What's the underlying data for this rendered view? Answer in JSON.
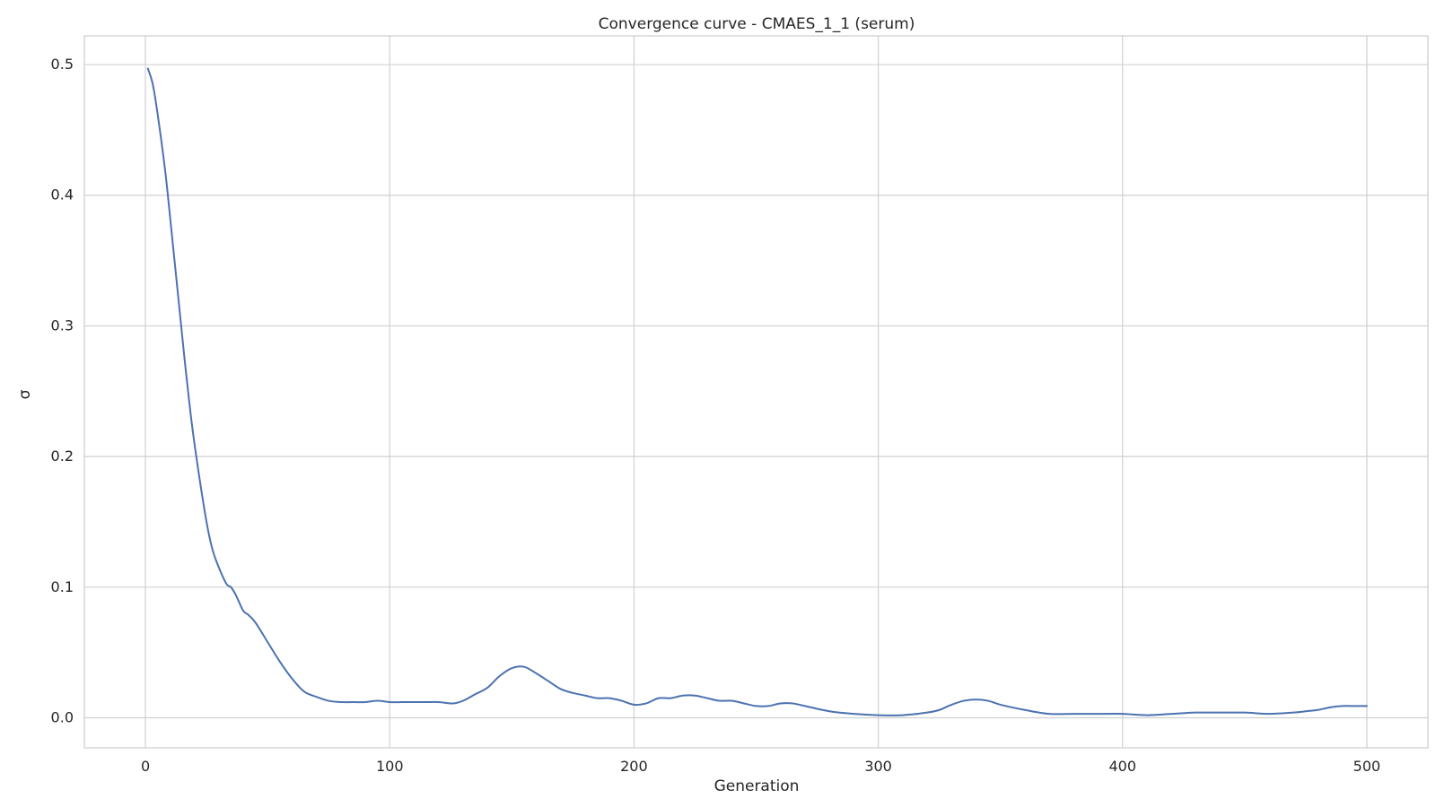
{
  "chart_data": {
    "type": "line",
    "title": "Convergence curve - CMAES_1_1 (serum)",
    "xlabel": "Generation",
    "ylabel": "σ",
    "xlim": [
      -25,
      525
    ],
    "ylim": [
      -0.023,
      0.522
    ],
    "xticks": [
      0,
      100,
      200,
      300,
      400,
      500
    ],
    "yticks": [
      0.0,
      0.1,
      0.2,
      0.3,
      0.4,
      0.5
    ],
    "xtick_labels": [
      "0",
      "100",
      "200",
      "300",
      "400",
      "500"
    ],
    "ytick_labels": [
      "0.0",
      "0.1",
      "0.2",
      "0.3",
      "0.4",
      "0.5"
    ],
    "grid": true,
    "colors": {
      "line": "#4c72b0",
      "grid": "#d0d0d0",
      "spine": "#cccccc"
    },
    "series": [
      {
        "x": [
          1,
          3,
          5,
          8,
          10,
          13,
          16,
          19,
          22,
          25,
          27,
          29,
          33,
          35,
          37,
          40,
          42,
          45,
          50,
          55,
          60,
          65,
          70,
          75,
          80,
          85,
          90,
          95,
          100,
          105,
          110,
          115,
          120,
          126,
          130,
          135,
          140,
          145,
          150,
          155,
          160,
          165,
          170,
          175,
          180,
          185,
          190,
          195,
          200,
          205,
          210,
          215,
          220,
          225,
          230,
          235,
          240,
          245,
          250,
          255,
          260,
          265,
          270,
          280,
          290,
          300,
          310,
          320,
          325,
          330,
          335,
          340,
          345,
          350,
          360,
          370,
          380,
          390,
          400,
          410,
          420,
          430,
          440,
          450,
          460,
          470,
          475,
          480,
          485,
          490,
          495,
          500
        ],
        "y": [
          0.497,
          0.485,
          0.462,
          0.42,
          0.385,
          0.33,
          0.275,
          0.225,
          0.185,
          0.15,
          0.132,
          0.12,
          0.103,
          0.1,
          0.094,
          0.082,
          0.079,
          0.073,
          0.058,
          0.043,
          0.03,
          0.02,
          0.016,
          0.013,
          0.012,
          0.012,
          0.012,
          0.013,
          0.012,
          0.012,
          0.012,
          0.012,
          0.012,
          0.011,
          0.013,
          0.018,
          0.023,
          0.032,
          0.038,
          0.039,
          0.034,
          0.028,
          0.022,
          0.019,
          0.017,
          0.015,
          0.015,
          0.013,
          0.01,
          0.011,
          0.015,
          0.015,
          0.017,
          0.017,
          0.015,
          0.013,
          0.013,
          0.011,
          0.009,
          0.009,
          0.011,
          0.011,
          0.009,
          0.005,
          0.003,
          0.002,
          0.002,
          0.004,
          0.006,
          0.01,
          0.013,
          0.014,
          0.013,
          0.01,
          0.006,
          0.003,
          0.003,
          0.003,
          0.003,
          0.002,
          0.003,
          0.004,
          0.004,
          0.004,
          0.003,
          0.004,
          0.005,
          0.006,
          0.008,
          0.009,
          0.009,
          0.009
        ]
      }
    ]
  }
}
